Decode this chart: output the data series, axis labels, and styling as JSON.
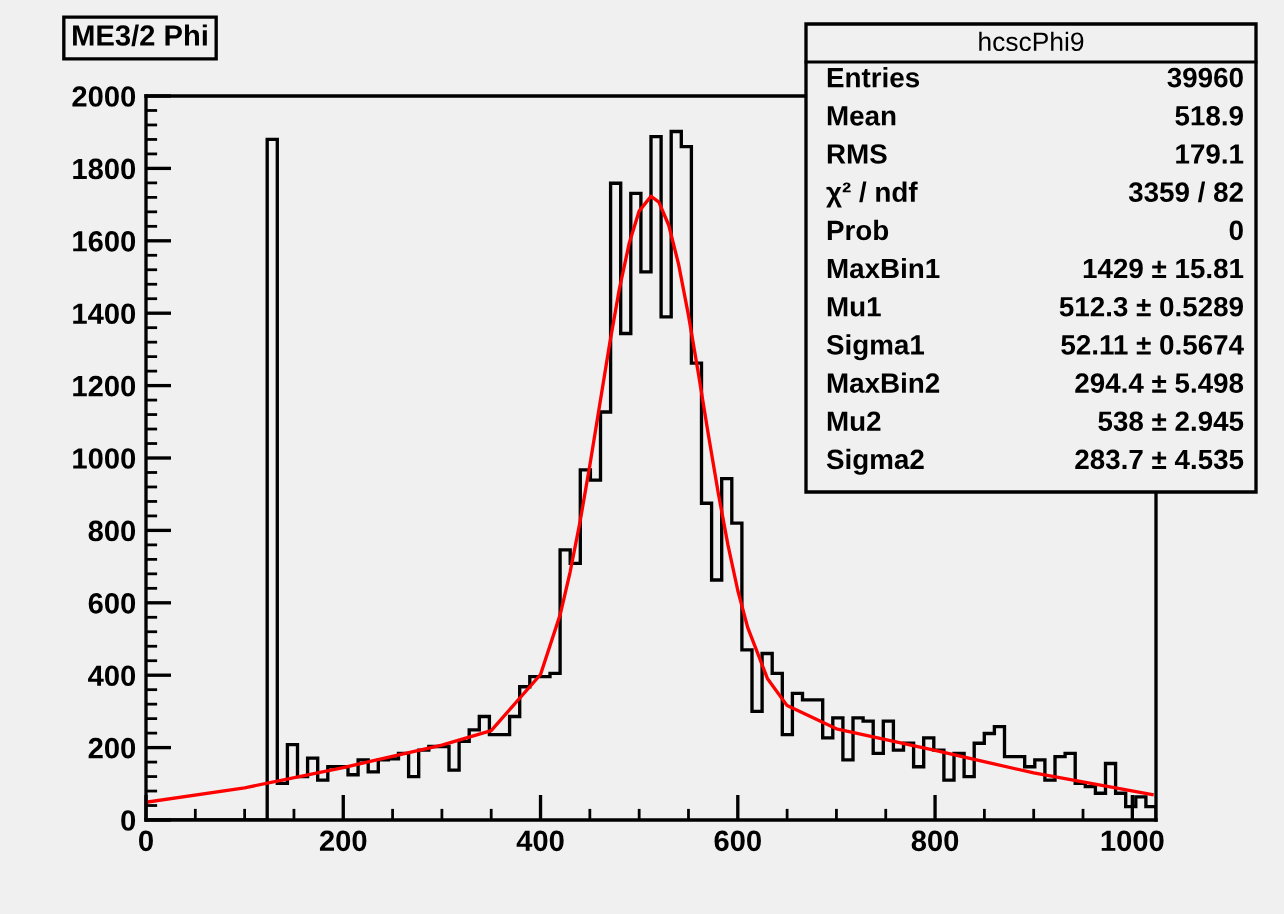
{
  "chart_data": {
    "type": "histogram",
    "title": "ME3/2 Phi",
    "bins": [
      0,
      10.24,
      20.48,
      30.72,
      40.96,
      51.2,
      61.44,
      71.68,
      81.92,
      92.16,
      102.4,
      112.64,
      122.88,
      133.12,
      143.36,
      153.6,
      163.84,
      174.08,
      184.32,
      194.56,
      204.8,
      215.04,
      225.28,
      235.52,
      245.76,
      256,
      266.24,
      276.48,
      286.72,
      296.96,
      307.2,
      317.44,
      327.68,
      337.92,
      348.16,
      358.4,
      368.64,
      378.88,
      389.12,
      399.36,
      409.6,
      419.84,
      430.08,
      440.32,
      450.56,
      460.8,
      471.04,
      481.28,
      491.52,
      501.76,
      512,
      522.24,
      532.48,
      542.72,
      552.96,
      563.2,
      573.44,
      583.68,
      593.92,
      604.16,
      614.4,
      624.64,
      634.88,
      645.12,
      655.36,
      665.6,
      675.84,
      686.08,
      696.32,
      706.56,
      716.8,
      727.04,
      737.28,
      747.52,
      757.76,
      768,
      778.24,
      788.48,
      798.72,
      808.96,
      819.2,
      829.44,
      839.68,
      849.92,
      860.16,
      870.4,
      880.64,
      890.88,
      901.12,
      911.36,
      921.6,
      931.84,
      942.08,
      952.32,
      962.56,
      972.8,
      983.04,
      993.28,
      1003.52,
      1013.76,
      1024
    ],
    "series": [
      {
        "color": "#000000",
        "values": [
          0,
          0,
          0,
          0,
          0,
          0,
          0,
          0,
          0,
          0,
          0,
          0,
          1880,
          101,
          208,
          120,
          171,
          110,
          147,
          147,
          125,
          166,
          133,
          166,
          169,
          184,
          120,
          193,
          203,
          203,
          138,
          217,
          249,
          286,
          236,
          236,
          286,
          368,
          396,
          396,
          405,
          746,
          709,
          967,
          939,
          1127,
          1759,
          1344,
          1731,
          1514,
          1888,
          1390,
          1902,
          1860,
          1262,
          875,
          663,
          943,
          820,
          470,
          300,
          460,
          405,
          236,
          350,
          332,
          332,
          227,
          282,
          166,
          282,
          273,
          184,
          273,
          193,
          212,
          147,
          227,
          193,
          110,
          184,
          120,
          212,
          239,
          258,
          175,
          175,
          147,
          166,
          110,
          175,
          184,
          101,
          92,
          74,
          156,
          74,
          37,
          64,
          37
        ]
      },
      {
        "type": "line",
        "color": "#ff0000",
        "x": [
          0,
          100,
          200,
          300,
          350,
          400,
          420,
          430,
          440,
          450,
          460,
          470,
          480,
          490,
          500,
          512,
          520,
          530,
          540,
          550,
          560,
          570,
          580,
          590,
          600,
          610,
          630,
          650,
          700,
          800,
          900,
          1020
        ],
        "values": [
          49,
          89,
          145,
          207,
          247,
          402,
          568,
          685,
          823,
          980,
          1147,
          1314,
          1468,
          1594,
          1682,
          1723,
          1707,
          1643,
          1535,
          1394,
          1234,
          1067,
          906,
          760,
          634,
          532,
          391,
          316,
          252,
          192,
          130,
          70
        ]
      }
    ],
    "xlim": [
      0,
      1024
    ],
    "xticks": [
      0,
      200,
      400,
      600,
      800,
      1000
    ],
    "ylim": [
      0,
      2000
    ],
    "yticks": [
      0,
      200,
      400,
      600,
      800,
      1000,
      1200,
      1400,
      1600,
      1800,
      2000
    ],
    "grid": false,
    "legend": false,
    "annotations": [
      "hcscPhi9",
      "Entries\t39960",
      "Mean\t518.9",
      "RMS\t179.1",
      "χ² / ndf\t3359 / 82",
      "Prob\t0",
      "MaxBin1\t1429 ± 15.81",
      "Mu1\t512.3 ± 0.5289",
      "Sigma1\t52.11 ± 0.5674",
      "MaxBin2\t294.4 ± 5.498",
      "Mu2\t538 ± 2.945",
      "Sigma2\t283.7 ± 4.535"
    ]
  }
}
